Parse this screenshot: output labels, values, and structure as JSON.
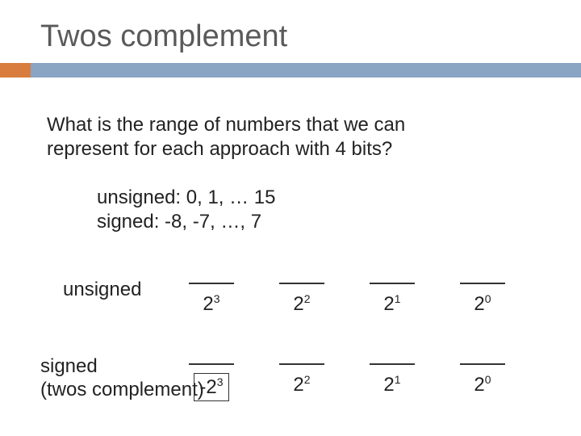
{
  "title": "Twos complement",
  "colors": {
    "accent": "#d97d3f",
    "bar": "#8aa5c4",
    "text": "#222222",
    "title": "#5a5a5a"
  },
  "question_line1": "What is the range of numbers that we can",
  "question_line2": "represent for each approach with 4 bits?",
  "answer_unsigned": "unsigned: 0, 1, … 15",
  "answer_signed": "signed: -8, -7, …, 7",
  "label_unsigned": "unsigned",
  "label_signed_line1": "signed",
  "label_signed_line2": "(twos complement)",
  "unsigned_row": {
    "bits": [
      {
        "base": "2",
        "exp": "3",
        "neg": false
      },
      {
        "base": "2",
        "exp": "2",
        "neg": false
      },
      {
        "base": "2",
        "exp": "1",
        "neg": false
      },
      {
        "base": "2",
        "exp": "0",
        "neg": false
      }
    ]
  },
  "signed_row": {
    "bits": [
      {
        "base": "2",
        "exp": "3",
        "neg": true
      },
      {
        "base": "2",
        "exp": "2",
        "neg": false
      },
      {
        "base": "2",
        "exp": "1",
        "neg": false
      },
      {
        "base": "2",
        "exp": "0",
        "neg": false
      }
    ]
  }
}
